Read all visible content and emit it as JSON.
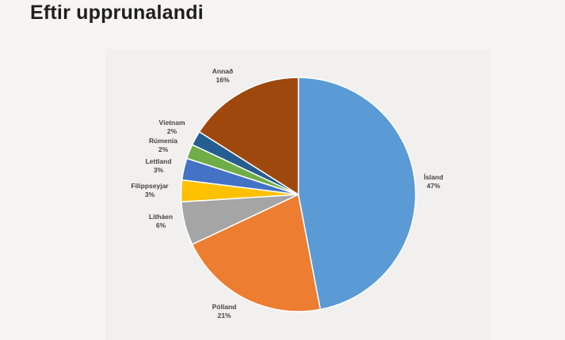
{
  "header": {
    "title": "Eftir upprunalandi"
  },
  "chart_data": {
    "type": "pie",
    "title": "Eftir upprunalandi",
    "slices": [
      {
        "name": "Ísland",
        "label": "47%",
        "value": 47,
        "color": "#5b9bd5"
      },
      {
        "name": "Pólland",
        "label": "21%",
        "value": 21,
        "color": "#ed7d31"
      },
      {
        "name": "Litháen",
        "label": "6%",
        "value": 6,
        "color": "#a5a5a5"
      },
      {
        "name": "Filippseyjar",
        "label": "3%",
        "value": 3,
        "color": "#ffc000"
      },
      {
        "name": "Lettland",
        "label": "3%",
        "value": 3,
        "color": "#4472c4"
      },
      {
        "name": "Rúmenía",
        "label": "2%",
        "value": 2,
        "color": "#70ad47"
      },
      {
        "name": "Víetnam",
        "label": "2%",
        "value": 2,
        "color": "#255e91"
      },
      {
        "name": "Annað",
        "label": "16%",
        "value": 16,
        "color": "#9e480e"
      }
    ]
  }
}
